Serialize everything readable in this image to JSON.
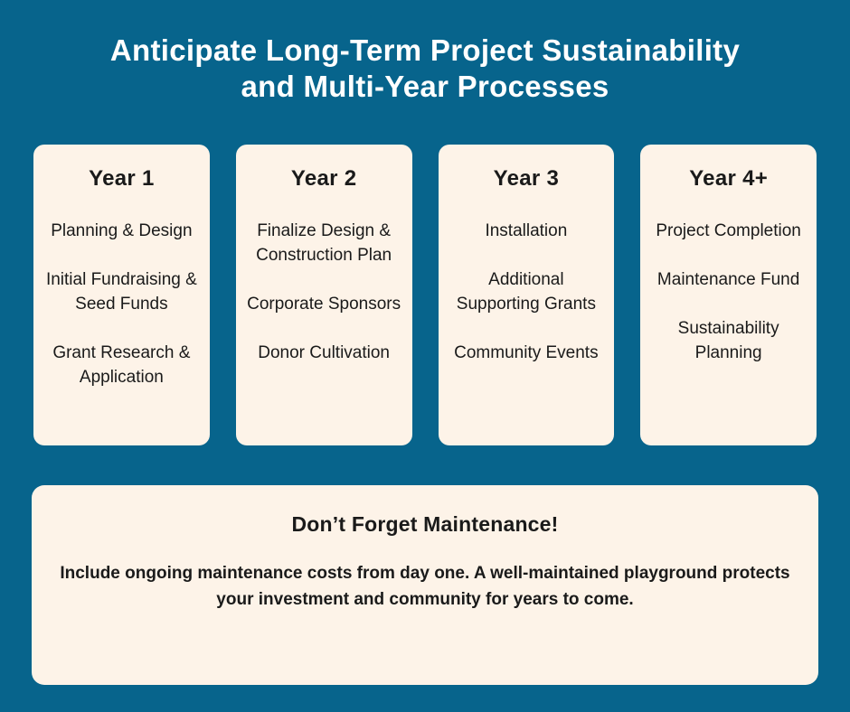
{
  "title": {
    "line1": "Anticipate Long-Term Project Sustainability",
    "line2": "and Multi-Year Processes"
  },
  "colors": {
    "background": "#07648C",
    "card_background": "#FDF3E8",
    "title_text": "#FFFFFF",
    "body_text": "#1A1A1A"
  },
  "cards": [
    {
      "heading": "Year 1",
      "items": [
        "Planning & Design",
        "Initial Fundraising & Seed Funds",
        "Grant Research & Application"
      ]
    },
    {
      "heading": "Year 2",
      "items": [
        "Finalize Design & Construction Plan",
        "Corporate Sponsors",
        "Donor Cultivation"
      ]
    },
    {
      "heading": "Year 3",
      "items": [
        "Installation",
        "Additional Supporting Grants",
        "Community Events"
      ]
    },
    {
      "heading": "Year 4+",
      "items": [
        "Project Completion",
        "Maintenance Fund",
        "Sustainability Planning"
      ]
    }
  ],
  "callout": {
    "heading": "Don’t Forget Maintenance!",
    "body": "Include ongoing maintenance costs from day one. A well-maintained playground protects your investment and community for years to come."
  }
}
